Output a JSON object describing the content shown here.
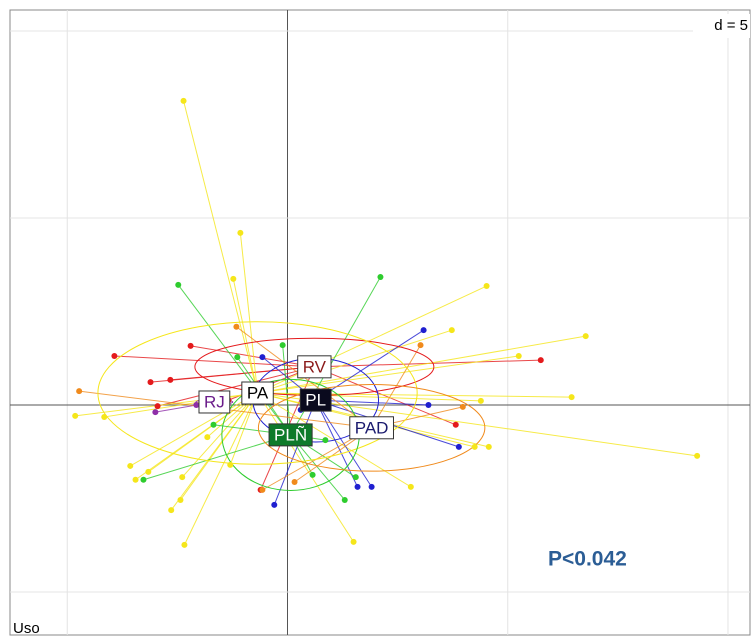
{
  "chart_data": {
    "type": "scatter",
    "scale_label": "d = 5",
    "corner_label": "Uso",
    "annotation": "P<0.042",
    "xlim": [
      -6.3,
      10.5
    ],
    "ylim": [
      -6.15,
      10.56
    ],
    "xticks": [
      -5,
      0,
      5,
      10
    ],
    "yticks": [
      -5,
      0,
      5,
      10
    ],
    "grid": true,
    "series": [
      {
        "name": "RV",
        "color": "#e41a1c",
        "label_color": "#8b1a1a",
        "label_fill": "#ffffff",
        "center": [
          0.61,
          1.02
        ],
        "x": [
          -3.93,
          -3.11,
          -2.2,
          5.75,
          -2.95,
          -2.66,
          3.82,
          -1.34,
          0.3,
          -0.61
        ],
        "y": [
          1.31,
          0.61,
          1.58,
          1.2,
          -0.03,
          0.67,
          -0.53,
          0.13,
          1.2,
          -2.27
        ]
      },
      {
        "name": "PA",
        "color": "#f5e61a",
        "label_color": "#000000",
        "label_fill": "#ffffff",
        "center": [
          -0.68,
          0.32
        ],
        "x": [
          -2.36,
          -1.07,
          -1.23,
          4.52,
          6.77,
          3.73,
          5.25,
          6.45,
          4.39,
          -4.82,
          -4.16,
          -3.57,
          -3.16,
          -3.45,
          -2.39,
          -2.43,
          -2.64,
          -2.34,
          1.5,
          2.8,
          4.25,
          4.57,
          9.3,
          -1.3,
          -1.82
        ],
        "y": [
          8.13,
          4.6,
          3.37,
          3.18,
          1.84,
          2.0,
          1.31,
          0.21,
          0.11,
          -0.29,
          -0.32,
          -1.63,
          -1.79,
          -2.0,
          -1.93,
          -2.54,
          -2.81,
          -3.74,
          -3.66,
          -2.19,
          -1.12,
          -1.12,
          -1.36,
          -1.6,
          -0.86
        ]
      },
      {
        "name": "RJ",
        "color": "#8e2ea8",
        "label_color": "#6a1b8a",
        "label_fill": "#ffffff",
        "center": [
          -1.66,
          0.08
        ],
        "x": [
          -3.0,
          -2.07
        ],
        "y": [
          -0.19,
          0.0
        ]
      },
      {
        "name": "PL",
        "color": "#1f1fd0",
        "label_color": "#ffffff",
        "label_fill": "#0a0a1e",
        "center": [
          0.64,
          0.13
        ],
        "x": [
          3.09,
          3.2,
          3.89,
          1.59,
          1.91,
          -0.3,
          -0.57,
          0.3
        ],
        "y": [
          2.0,
          0.0,
          -1.12,
          -2.19,
          -2.19,
          -2.67,
          1.28,
          -0.13
        ]
      },
      {
        "name": "PLÑ",
        "color": "#2ecc2e",
        "label_color": "#ffffff",
        "label_fill": "#0e7a2a",
        "center": [
          0.07,
          -0.8
        ],
        "x": [
          -2.48,
          2.11,
          -1.14,
          -0.11,
          -3.27,
          1.3,
          0.57,
          1.55,
          -1.68,
          0.86
        ],
        "y": [
          3.21,
          3.42,
          1.28,
          1.6,
          -2.0,
          -2.54,
          -1.87,
          -1.93,
          -0.53,
          -0.94
        ]
      },
      {
        "name": "PAD",
        "color": "#f08a1c",
        "label_color": "#1a1a6e",
        "label_fill": "#ffffff",
        "center": [
          1.91,
          -0.61
        ],
        "x": [
          -4.73,
          -1.16,
          3.98,
          -0.57,
          3.02,
          0.16
        ],
        "y": [
          0.37,
          2.09,
          -0.05,
          -2.27,
          1.6,
          -2.06
        ]
      }
    ]
  }
}
